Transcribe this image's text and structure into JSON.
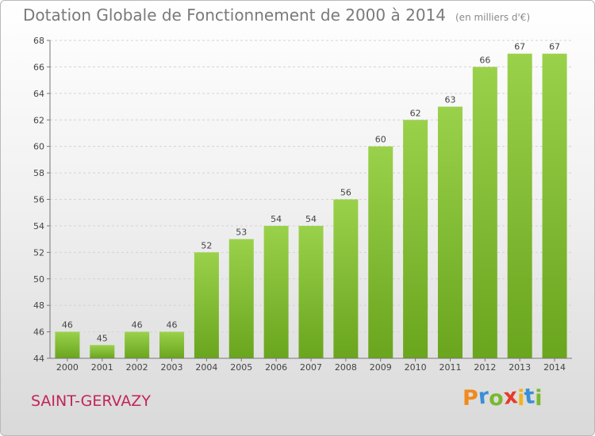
{
  "title": "Dotation Globale de Fonctionnement de 2000 à 2014",
  "unit_note": "(en milliers d'€)",
  "commune": "SAINT-GERVAZY",
  "logo": {
    "letters": [
      "P",
      "r",
      "o",
      "x",
      "i",
      "t",
      "i"
    ],
    "colors": [
      "#f08a1c",
      "#3a8fd6",
      "#7ab82f",
      "#e53b2c",
      "#f0b41c",
      "#3a8fd6",
      "#7ab82f"
    ]
  },
  "colors": {
    "bar_top": "#9ad14b",
    "bar_bottom": "#6aa51e",
    "commune": "#c2245a"
  },
  "chart_data": {
    "type": "bar",
    "categories": [
      "2000",
      "2001",
      "2002",
      "2003",
      "2004",
      "2005",
      "2006",
      "2007",
      "2008",
      "2009",
      "2010",
      "2011",
      "2012",
      "2013",
      "2014"
    ],
    "values": [
      46,
      45,
      46,
      46,
      52,
      53,
      54,
      54,
      56,
      60,
      62,
      63,
      66,
      67,
      67
    ],
    "ylim": [
      44,
      68
    ],
    "yticks": [
      44,
      46,
      48,
      50,
      52,
      54,
      56,
      58,
      60,
      62,
      64,
      66,
      68
    ],
    "grid": true
  }
}
